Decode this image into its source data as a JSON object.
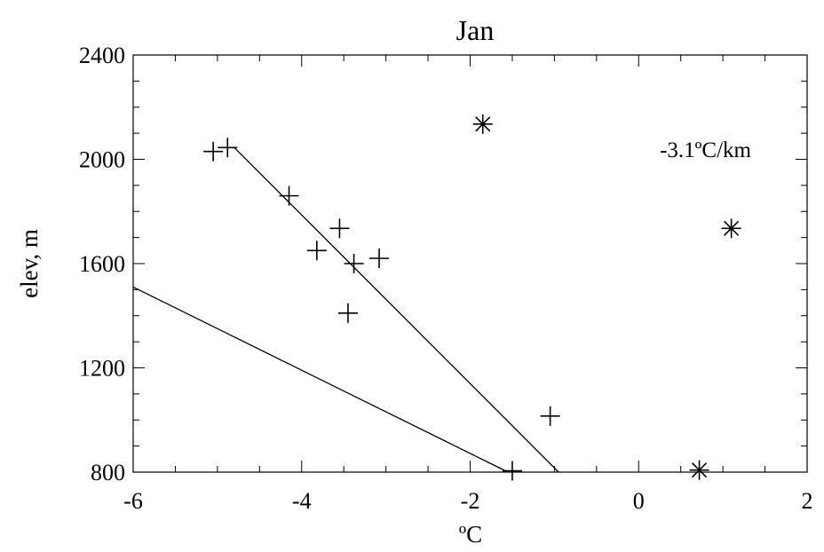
{
  "chart_data": {
    "type": "scatter",
    "title": "Jan",
    "xlabel": "ºC",
    "ylabel": "elev, m",
    "xlim": [
      -6,
      2
    ],
    "ylim": [
      800,
      2400
    ],
    "xticks": [
      -6,
      -4,
      -2,
      0,
      2
    ],
    "yticks": [
      800,
      1200,
      1600,
      2000,
      2400
    ],
    "xtick_labels": [
      "-6",
      "-4",
      "-2",
      "0",
      "2"
    ],
    "ytick_labels": [
      "800",
      "1200",
      "1600",
      "2000",
      "2400"
    ],
    "x_minor_step": 0.5,
    "y_minor_step": 100,
    "annotation": "-3.1ºC/km",
    "grid": false,
    "plus_points": [
      {
        "x": -5.05,
        "y": 2030
      },
      {
        "x": -4.88,
        "y": 2045
      },
      {
        "x": -4.15,
        "y": 1860
      },
      {
        "x": -3.55,
        "y": 1735
      },
      {
        "x": -3.82,
        "y": 1650
      },
      {
        "x": -3.38,
        "y": 1600
      },
      {
        "x": -3.08,
        "y": 1620
      },
      {
        "x": -3.45,
        "y": 1410
      },
      {
        "x": -1.05,
        "y": 1015
      },
      {
        "x": -1.5,
        "y": 805
      }
    ],
    "asterisk_points": [
      {
        "x": -1.85,
        "y": 2135
      },
      {
        "x": 1.1,
        "y": 1735
      },
      {
        "x": 0.72,
        "y": 808
      }
    ],
    "lines": [
      {
        "points": [
          [
            -4.8,
            2045
          ],
          [
            -0.95,
            800
          ]
        ]
      },
      {
        "points": [
          [
            -6.0,
            1510
          ],
          [
            -1.55,
            800
          ]
        ]
      }
    ]
  }
}
